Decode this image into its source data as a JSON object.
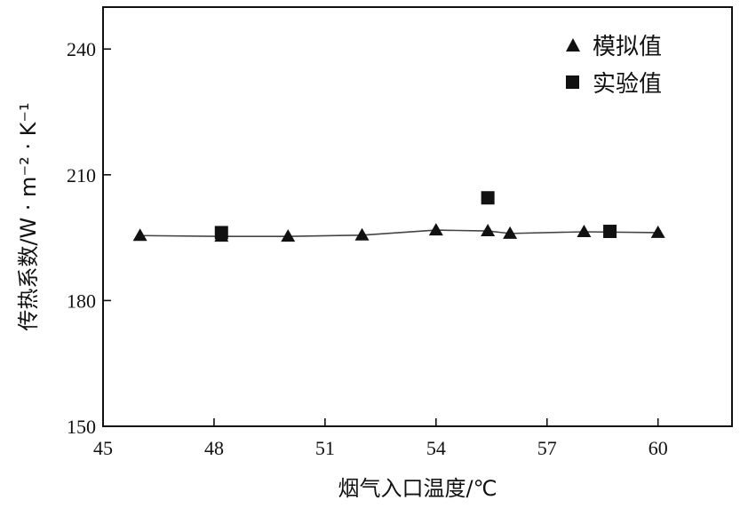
{
  "chart_data": {
    "type": "line",
    "xlabel": "烟气入口温度/℃",
    "ylabel": "传热系数/W · m⁻² · K⁻¹",
    "xlim": [
      45,
      62
    ],
    "ylim": [
      150,
      250
    ],
    "x_ticks": [
      45,
      48,
      51,
      54,
      57,
      60
    ],
    "y_ticks": [
      150,
      180,
      210,
      240
    ],
    "x_tick_labels": [
      "45",
      "48",
      "51",
      "54",
      "57",
      "60"
    ],
    "y_tick_labels": [
      "150",
      "180",
      "210",
      "240"
    ],
    "grid": false,
    "legend_position": "top-right",
    "series": [
      {
        "name": "模拟值",
        "marker": "triangle",
        "connected": true,
        "x": [
          46,
          48.2,
          50,
          52,
          54,
          55.4,
          56,
          58,
          60
        ],
        "y": [
          195.5,
          195.3,
          195.3,
          195.6,
          196.8,
          196.6,
          196.0,
          196.4,
          196.2
        ]
      },
      {
        "name": "实验值",
        "marker": "square",
        "connected": false,
        "x": [
          48.2,
          55.4,
          58.7
        ],
        "y": [
          196.2,
          204.5,
          196.5
        ]
      }
    ]
  }
}
